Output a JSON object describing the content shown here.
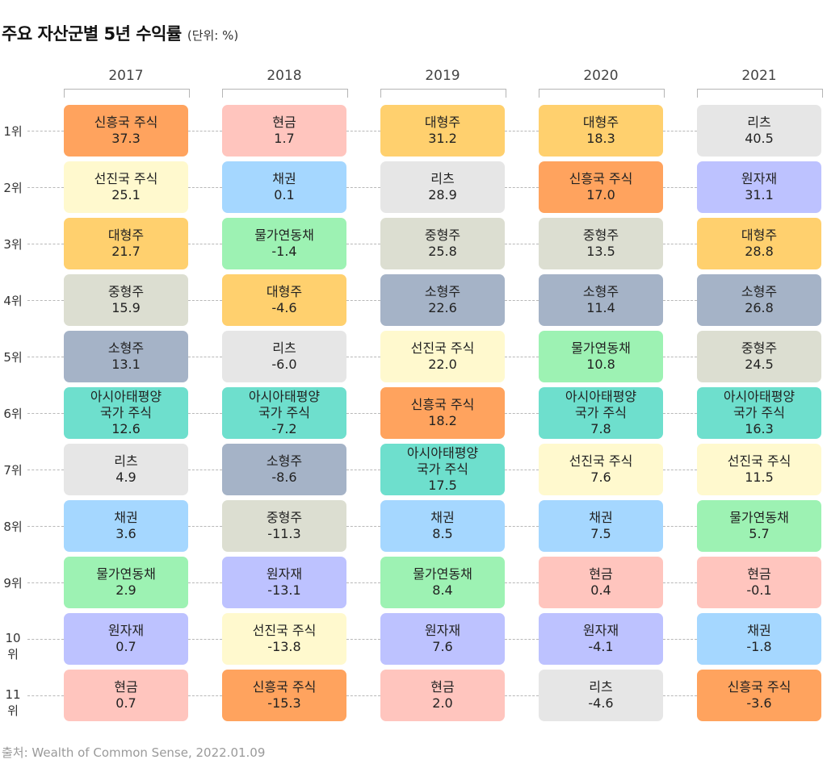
{
  "title": {
    "main": "주요 자산군별 5년 수익률",
    "unit": "(단위: %)"
  },
  "source": "출처: Wealth of Common Sense, 2022.01.09",
  "assets": {
    "em": {
      "label": "신흥국 주식",
      "color": "#FFA35E"
    },
    "dm": {
      "label": "선진국 주식",
      "color": "#FFF9CE"
    },
    "lc": {
      "label": "대형주",
      "color": "#FFD06E"
    },
    "mc": {
      "label": "중형주",
      "color": "#DCDED1"
    },
    "sc": {
      "label": "소형주",
      "color": "#A5B3C7"
    },
    "ap": {
      "label": "아시아태평양\n국가 주식",
      "color": "#6EDFCD"
    },
    "reit": {
      "label": "리츠",
      "color": "#E6E6E6"
    },
    "bond": {
      "label": "채권",
      "color": "#A5D7FF"
    },
    "tips": {
      "label": "물가연동채",
      "color": "#9DF2B3"
    },
    "cmd": {
      "label": "원자재",
      "color": "#BDC2FF"
    },
    "cash": {
      "label": "현금",
      "color": "#FFC5BE"
    }
  },
  "chart_data": {
    "type": "table",
    "title": "주요 자산군별 5년 수익률",
    "unit": "(단위: %)",
    "ranks": [
      "1위",
      "2위",
      "3위",
      "4위",
      "5위",
      "6위",
      "7위",
      "8위",
      "9위",
      "10위",
      "11위"
    ],
    "columns": [
      {
        "year": "2017",
        "cells": [
          {
            "asset": "em",
            "value": "37.3"
          },
          {
            "asset": "dm",
            "value": "25.1"
          },
          {
            "asset": "lc",
            "value": "21.7"
          },
          {
            "asset": "mc",
            "value": "15.9"
          },
          {
            "asset": "sc",
            "value": "13.1"
          },
          {
            "asset": "ap",
            "value": "12.6"
          },
          {
            "asset": "reit",
            "value": "4.9"
          },
          {
            "asset": "bond",
            "value": "3.6"
          },
          {
            "asset": "tips",
            "value": "2.9"
          },
          {
            "asset": "cmd",
            "value": "0.7"
          },
          {
            "asset": "cash",
            "value": "0.7"
          }
        ]
      },
      {
        "year": "2018",
        "cells": [
          {
            "asset": "cash",
            "value": "1.7"
          },
          {
            "asset": "bond",
            "value": "0.1"
          },
          {
            "asset": "tips",
            "value": "-1.4"
          },
          {
            "asset": "lc",
            "value": "-4.6"
          },
          {
            "asset": "reit",
            "value": "-6.0"
          },
          {
            "asset": "ap",
            "value": "-7.2"
          },
          {
            "asset": "sc",
            "value": "-8.6"
          },
          {
            "asset": "mc",
            "value": "-11.3"
          },
          {
            "asset": "cmd",
            "value": "-13.1"
          },
          {
            "asset": "dm",
            "value": "-13.8"
          },
          {
            "asset": "em",
            "value": "-15.3"
          }
        ]
      },
      {
        "year": "2019",
        "cells": [
          {
            "asset": "lc",
            "value": "31.2"
          },
          {
            "asset": "reit",
            "value": "28.9"
          },
          {
            "asset": "mc",
            "value": "25.8"
          },
          {
            "asset": "sc",
            "value": "22.6"
          },
          {
            "asset": "dm",
            "value": "22.0"
          },
          {
            "asset": "em",
            "value": "18.2"
          },
          {
            "asset": "ap",
            "value": "17.5"
          },
          {
            "asset": "bond",
            "value": "8.5"
          },
          {
            "asset": "tips",
            "value": "8.4"
          },
          {
            "asset": "cmd",
            "value": "7.6"
          },
          {
            "asset": "cash",
            "value": "2.0"
          }
        ]
      },
      {
        "year": "2020",
        "cells": [
          {
            "asset": "lc",
            "value": "18.3"
          },
          {
            "asset": "em",
            "value": "17.0"
          },
          {
            "asset": "mc",
            "value": "13.5"
          },
          {
            "asset": "sc",
            "value": "11.4"
          },
          {
            "asset": "tips",
            "value": "10.8"
          },
          {
            "asset": "ap",
            "value": "7.8"
          },
          {
            "asset": "dm",
            "value": "7.6"
          },
          {
            "asset": "bond",
            "value": "7.5"
          },
          {
            "asset": "cash",
            "value": "0.4"
          },
          {
            "asset": "cmd",
            "value": "-4.1"
          },
          {
            "asset": "reit",
            "value": "-4.6"
          }
        ]
      },
      {
        "year": "2021",
        "cells": [
          {
            "asset": "reit",
            "value": "40.5"
          },
          {
            "asset": "cmd",
            "value": "31.1"
          },
          {
            "asset": "lc",
            "value": "28.8"
          },
          {
            "asset": "sc",
            "value": "26.8"
          },
          {
            "asset": "mc",
            "value": "24.5"
          },
          {
            "asset": "ap",
            "value": "16.3"
          },
          {
            "asset": "dm",
            "value": "11.5"
          },
          {
            "asset": "tips",
            "value": "5.7"
          },
          {
            "asset": "cash",
            "value": "-0.1"
          },
          {
            "asset": "bond",
            "value": "-1.8"
          },
          {
            "asset": "em",
            "value": "-3.6"
          }
        ]
      }
    ]
  }
}
